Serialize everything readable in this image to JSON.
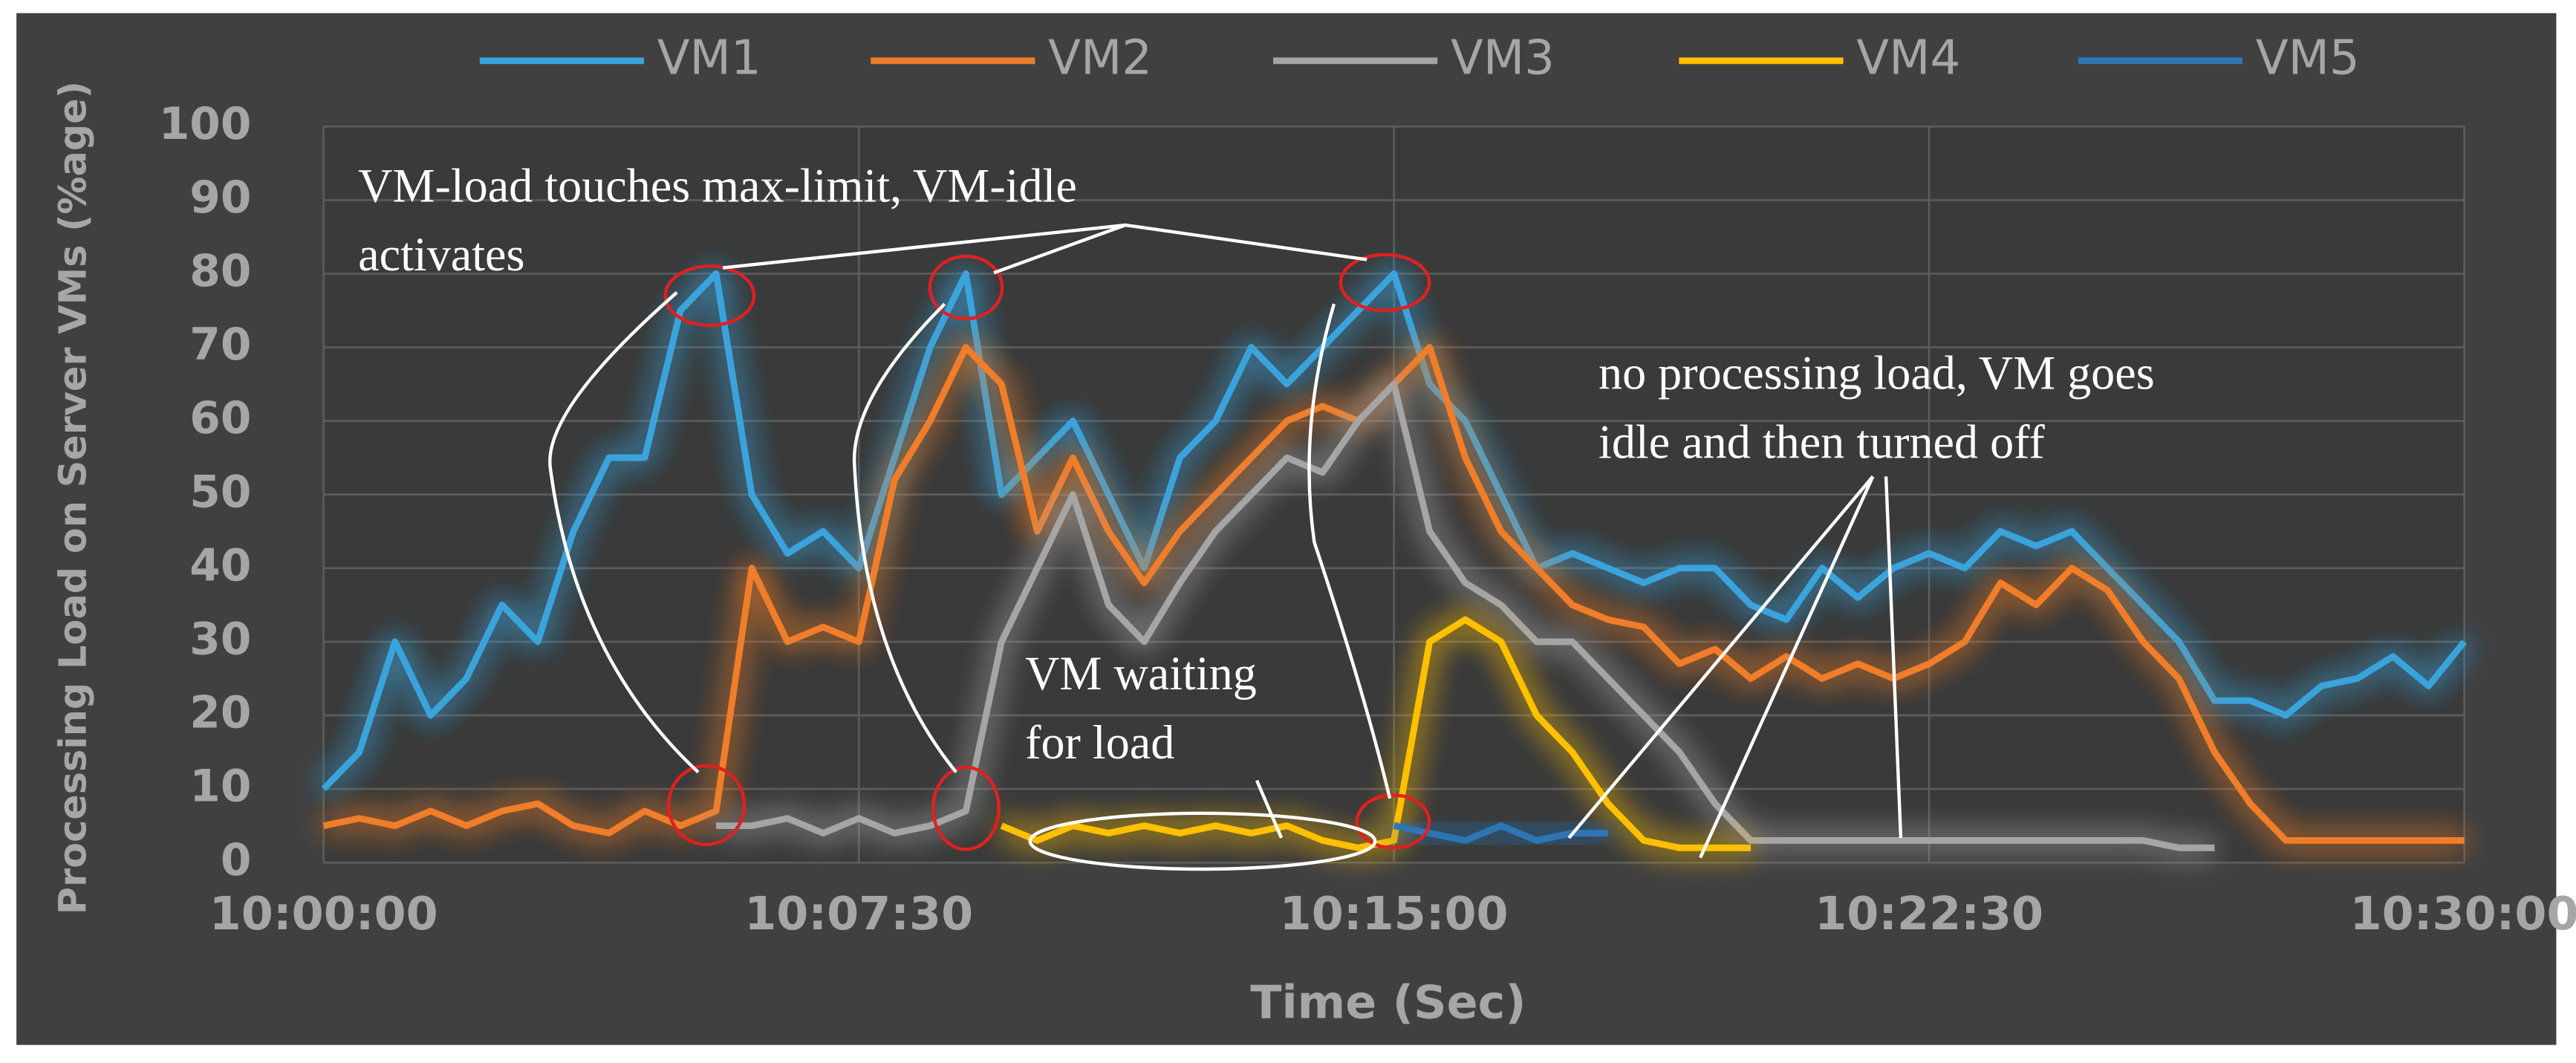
{
  "chart_data": {
    "type": "line",
    "y_label": "Processing Load on Server VMs (%age)",
    "x_label": "Time (Sec)",
    "x": [
      0,
      0.5,
      1,
      1.5,
      2,
      2.5,
      3,
      3.5,
      4,
      4.5,
      5,
      5.5,
      6,
      6.5,
      7,
      7.5,
      8,
      8.5,
      9,
      9.5,
      10,
      10.5,
      11,
      11.5,
      12,
      12.5,
      13,
      13.5,
      14,
      14.5,
      15,
      15.5,
      16,
      16.5,
      17,
      17.5,
      18,
      18.5,
      19,
      19.5,
      20,
      20.5,
      21,
      21.5,
      22,
      22.5,
      23,
      23.5,
      24,
      24.5,
      25,
      25.5,
      26,
      26.5,
      27,
      27.5,
      28,
      28.5,
      29,
      29.5,
      30
    ],
    "series": [
      {
        "name": "VM1",
        "color": "#3aa3dc",
        "values": [
          10,
          15,
          30,
          20,
          25,
          35,
          30,
          45,
          55,
          55,
          75,
          80,
          50,
          42,
          45,
          40,
          55,
          70,
          80,
          50,
          55,
          60,
          50,
          40,
          55,
          60,
          70,
          65,
          70,
          75,
          80,
          65,
          60,
          50,
          40,
          42,
          40,
          38,
          40,
          40,
          35,
          33,
          40,
          36,
          40,
          42,
          40,
          45,
          43,
          45,
          40,
          35,
          30,
          22,
          22,
          20,
          24,
          25,
          28,
          24,
          30
        ]
      },
      {
        "name": "VM2",
        "color": "#f07d2a",
        "values": [
          5,
          6,
          5,
          7,
          5,
          7,
          8,
          5,
          4,
          7,
          5,
          7,
          40,
          30,
          32,
          30,
          52,
          60,
          70,
          65,
          45,
          55,
          45,
          38,
          45,
          50,
          55,
          60,
          62,
          60,
          65,
          70,
          55,
          45,
          40,
          35,
          33,
          32,
          27,
          29,
          25,
          28,
          25,
          27,
          25,
          27,
          30,
          38,
          35,
          40,
          37,
          30,
          25,
          15,
          8,
          3,
          3,
          3,
          3,
          3,
          3
        ]
      },
      {
        "name": "VM3",
        "color": "#a5a5a5",
        "values": [
          null,
          null,
          null,
          null,
          null,
          null,
          null,
          null,
          null,
          null,
          null,
          5,
          5,
          6,
          4,
          6,
          4,
          5,
          7,
          30,
          40,
          50,
          35,
          30,
          38,
          45,
          50,
          55,
          53,
          60,
          65,
          45,
          38,
          35,
          30,
          30,
          25,
          20,
          15,
          8,
          3,
          3,
          3,
          3,
          3,
          3,
          3,
          3,
          3,
          3,
          3,
          3,
          2,
          2,
          null,
          null,
          null,
          null,
          null,
          null,
          null
        ]
      },
      {
        "name": "VM4",
        "color": "#ffc000",
        "values": [
          null,
          null,
          null,
          null,
          null,
          null,
          null,
          null,
          null,
          null,
          null,
          null,
          null,
          null,
          null,
          null,
          null,
          null,
          null,
          5,
          3,
          5,
          4,
          5,
          4,
          5,
          4,
          5,
          3,
          2,
          3,
          30,
          33,
          30,
          20,
          15,
          8,
          3,
          2,
          2,
          2,
          null,
          null,
          null,
          null,
          null,
          null,
          null,
          null,
          null,
          null,
          null,
          null,
          null,
          null,
          null,
          null,
          null,
          null,
          null,
          null
        ]
      },
      {
        "name": "VM5",
        "color": "#2e75b6",
        "values": [
          null,
          null,
          null,
          null,
          null,
          null,
          null,
          null,
          null,
          null,
          null,
          null,
          null,
          null,
          null,
          null,
          null,
          null,
          null,
          null,
          null,
          null,
          null,
          null,
          null,
          null,
          null,
          null,
          null,
          null,
          5,
          4,
          3,
          5,
          3,
          4,
          4,
          null,
          null,
          null,
          null,
          null,
          null,
          null,
          null,
          null,
          null,
          null,
          null,
          null,
          null,
          null,
          null,
          null,
          null,
          null,
          null,
          null,
          null,
          null,
          null
        ]
      }
    ],
    "xlim": [
      0,
      30
    ],
    "xticks": [
      {
        "value": 0,
        "label": "10:00:00"
      },
      {
        "value": 7.5,
        "label": "10:07:30"
      },
      {
        "value": 15,
        "label": "10:15:00"
      },
      {
        "value": 22.5,
        "label": "10:22:30"
      },
      {
        "value": 30,
        "label": "10:30:00"
      }
    ],
    "ylim": [
      0,
      100
    ],
    "yticks": [
      0,
      10,
      20,
      30,
      40,
      50,
      60,
      70,
      80,
      90,
      100
    ],
    "grid": true,
    "legend": "top",
    "annotations": [
      {
        "lines": [
          "VM-load touches max-limit, VM-idle",
          "activates"
        ]
      },
      {
        "lines": [
          "VM waiting",
          "for load"
        ]
      },
      {
        "lines": [
          "no processing load, VM goes",
          "idle and then turned off"
        ]
      }
    ]
  }
}
